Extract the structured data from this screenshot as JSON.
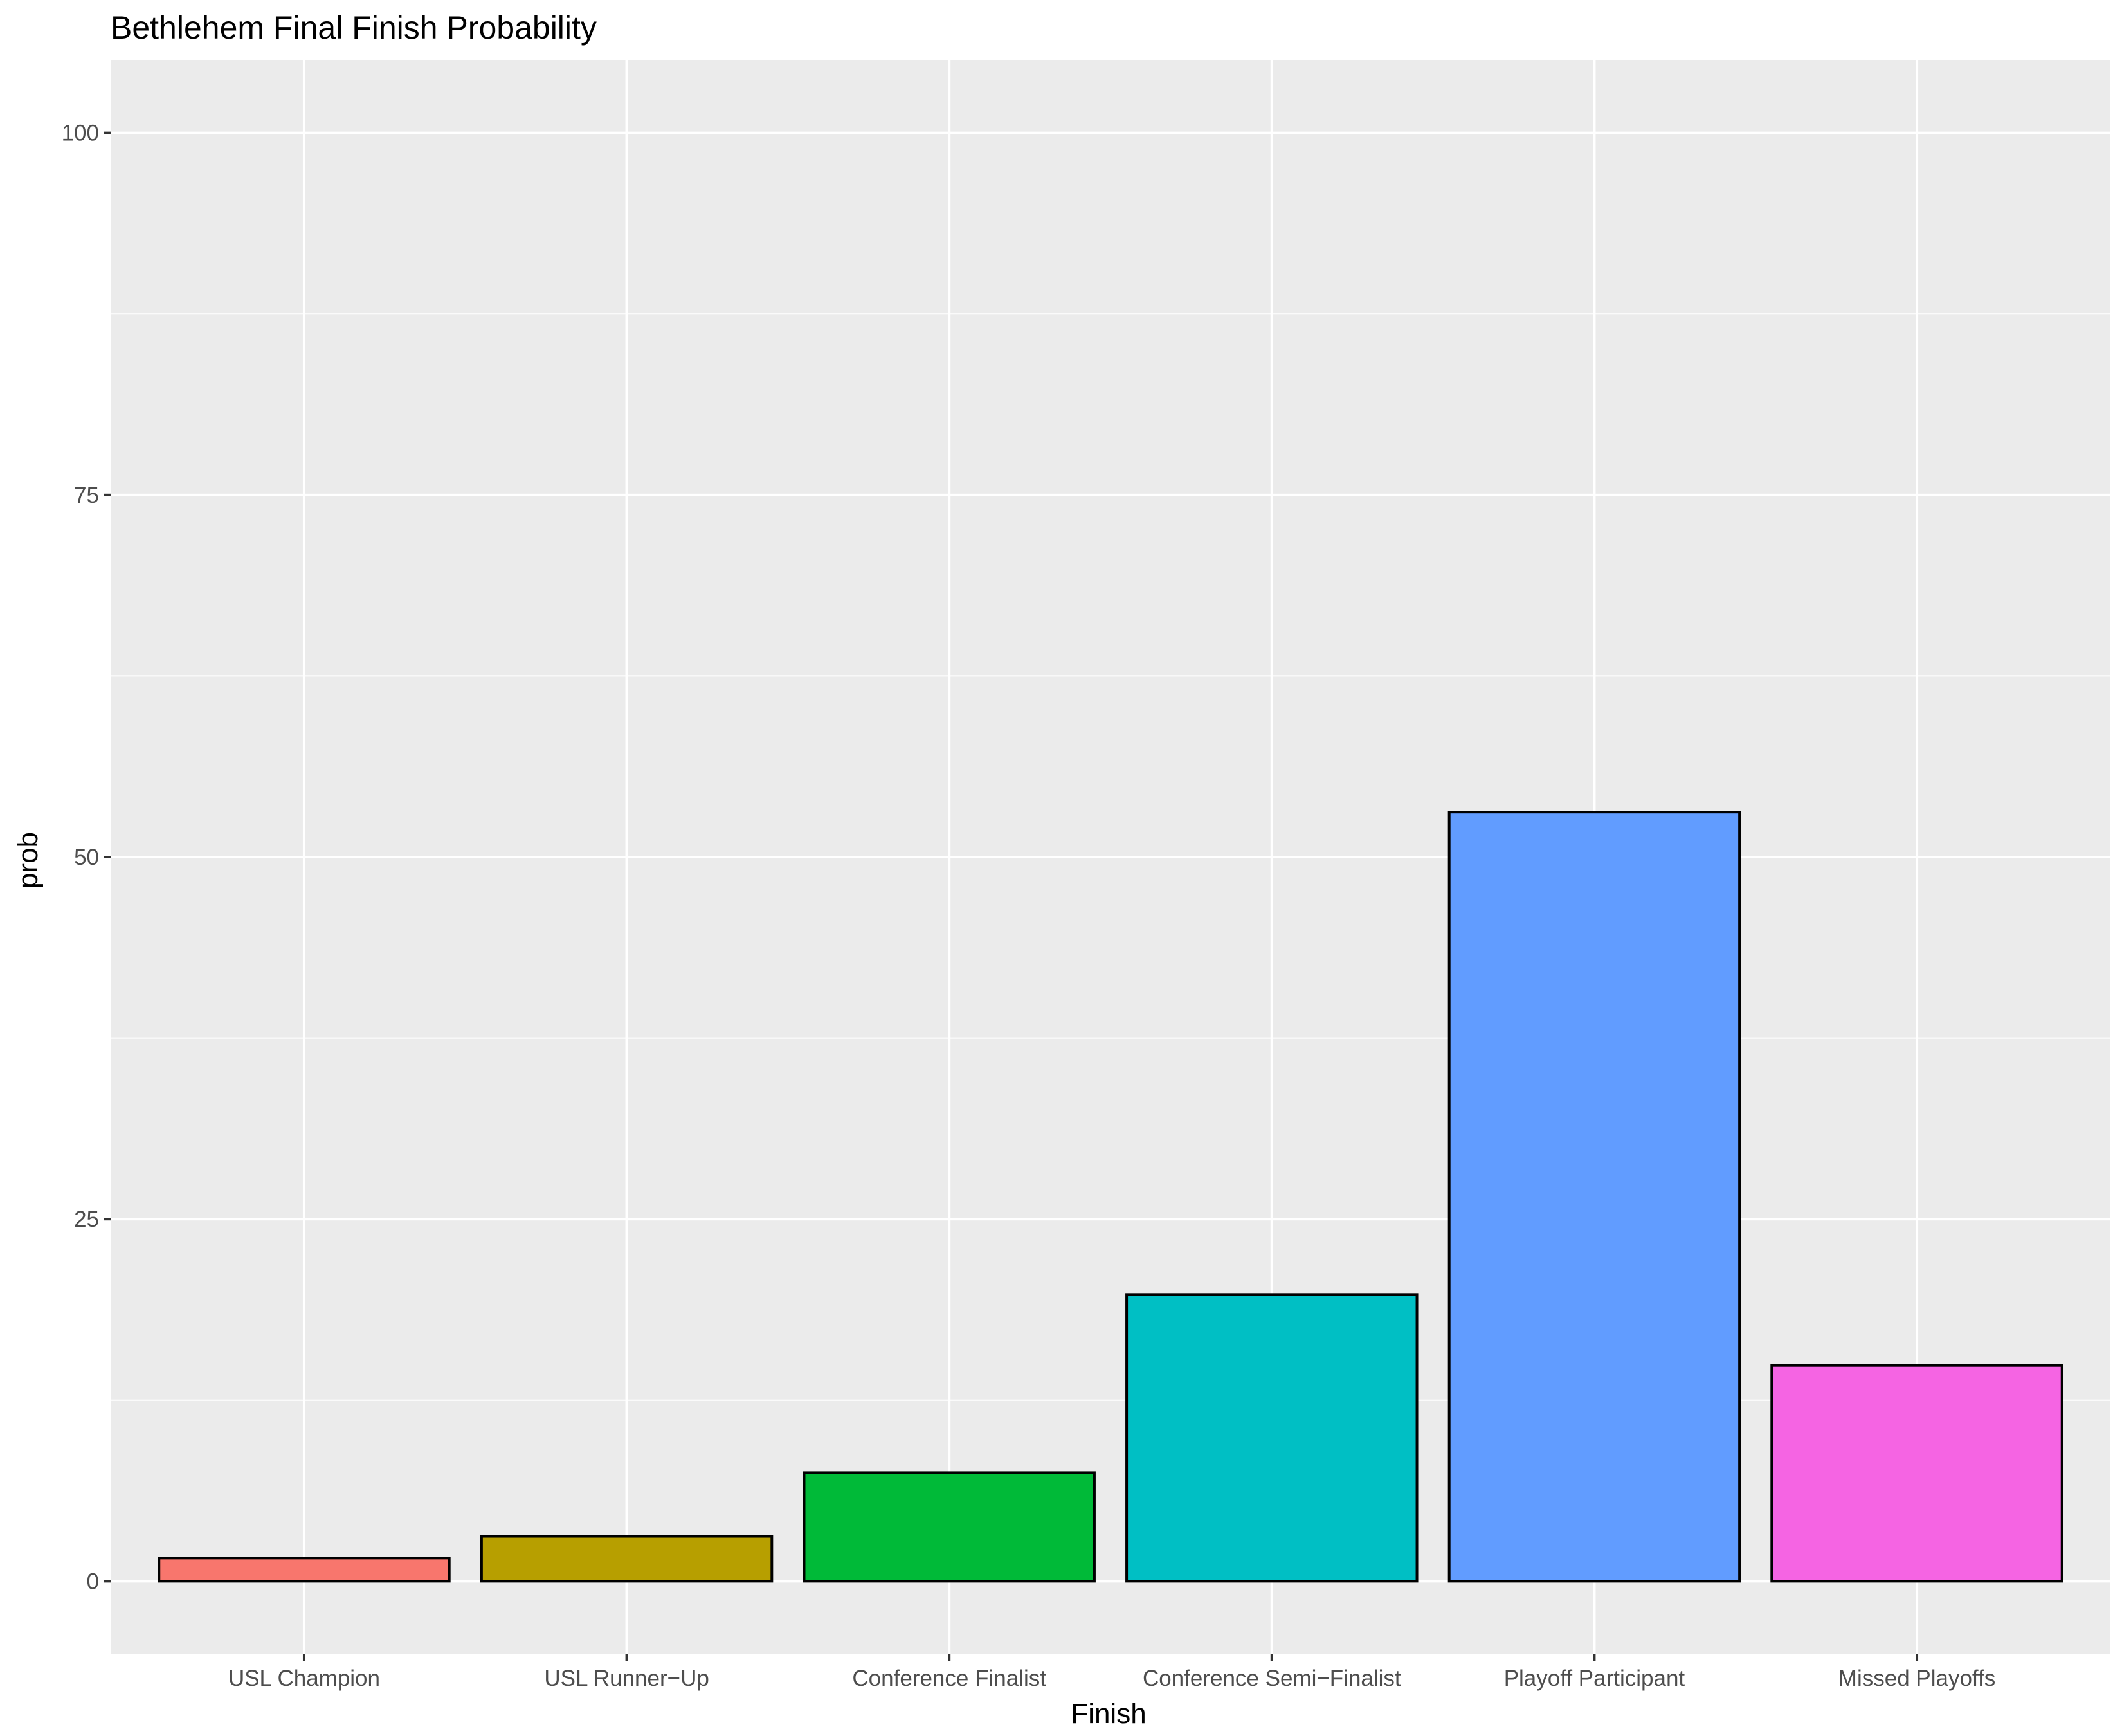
{
  "chart_data": {
    "type": "bar",
    "title": "Bethlehem Final Finish Probability",
    "xlabel": "Finish",
    "ylabel": "prob",
    "categories": [
      "USL Champion",
      "USL Runner−Up",
      "Conference Finalist",
      "Conference Semi−Finalist",
      "Playoff Participant",
      "Missed Playoffs"
    ],
    "values": [
      1.6,
      3.1,
      7.5,
      19.8,
      53.1,
      14.9
    ],
    "colors": [
      "#F8766D",
      "#B79F00",
      "#00BA38",
      "#00BFC4",
      "#619CFF",
      "#F564E3"
    ],
    "ylim": [
      -5,
      105
    ],
    "yticks": [
      0,
      25,
      50,
      75,
      100
    ],
    "grid": true,
    "legend": "none",
    "panel_background": "#EBEBEB",
    "bar_outline": "#000000"
  }
}
